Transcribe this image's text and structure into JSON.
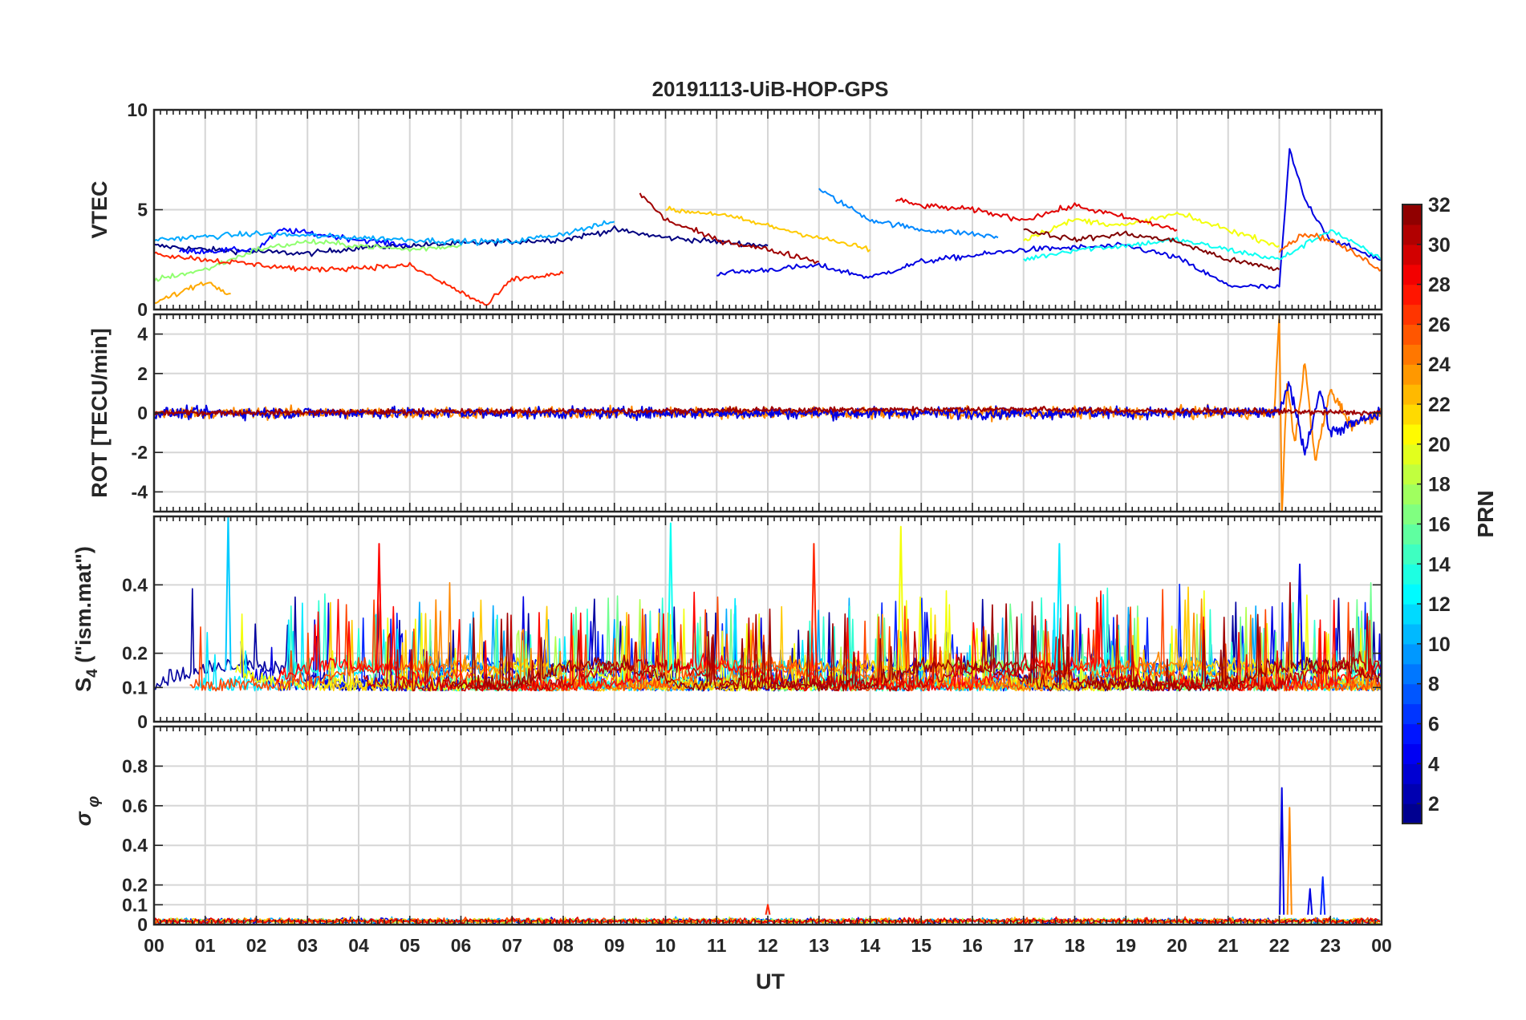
{
  "chart_data": {
    "type": "line",
    "title": "20191113-UiB-HOP-GPS",
    "xlabel": "UT",
    "x_unit": "hours",
    "xlim": [
      0,
      24
    ],
    "x_ticks": [
      0,
      1,
      2,
      3,
      4,
      5,
      6,
      7,
      8,
      9,
      10,
      11,
      12,
      13,
      14,
      15,
      16,
      17,
      18,
      19,
      20,
      21,
      22,
      23,
      24
    ],
    "x_tick_labels": [
      "00",
      "01",
      "02",
      "03",
      "04",
      "05",
      "06",
      "07",
      "08",
      "09",
      "10",
      "11",
      "12",
      "13",
      "14",
      "15",
      "16",
      "17",
      "18",
      "19",
      "20",
      "21",
      "22",
      "23",
      "00"
    ],
    "grid": true,
    "colorbar": {
      "label": "PRN",
      "range": [
        1,
        32
      ],
      "tick_values": [
        2,
        4,
        6,
        8,
        10,
        12,
        14,
        16,
        18,
        20,
        22,
        24,
        26,
        28,
        30,
        32
      ],
      "tick_labels": [
        "2",
        "4",
        "6",
        "8",
        "10",
        "12",
        "14",
        "16",
        "18",
        "20",
        "22",
        "24",
        "26",
        "28",
        "30",
        "32"
      ],
      "colormap": "jet",
      "placement": "right"
    },
    "panels": [
      {
        "id": "vtec",
        "ylabel": "VTEC",
        "ylim": [
          0,
          10
        ],
        "y_ticks": [
          0,
          5,
          10
        ],
        "y_tick_labels": [
          "0",
          "5",
          "10"
        ],
        "series": [
          {
            "prn": 1,
            "points": [
              [
                0,
                3.2
              ],
              [
                1,
                3.0
              ],
              [
                3,
                2.8
              ],
              [
                4,
                3.1
              ],
              [
                6,
                3.3
              ],
              [
                8,
                3.5
              ],
              [
                9,
                4.0
              ],
              [
                10,
                3.6
              ],
              [
                12,
                3.2
              ]
            ]
          },
          {
            "prn": 5,
            "points": [
              [
                0.5,
                2.9
              ],
              [
                2,
                3.0
              ],
              [
                2.5,
                4.0
              ],
              [
                4,
                3.5
              ],
              [
                5,
                3.2
              ]
            ]
          },
          {
            "prn": 4,
            "points": [
              [
                11,
                1.8
              ],
              [
                12,
                2.0
              ],
              [
                13,
                2.2
              ],
              [
                14,
                1.6
              ],
              [
                15,
                2.4
              ],
              [
                17,
                3.0
              ],
              [
                19,
                3.2
              ],
              [
                20,
                2.6
              ],
              [
                21,
                1.2
              ],
              [
                22,
                1.1
              ],
              [
                22.2,
                8.0
              ],
              [
                22.5,
                5.5
              ],
              [
                23,
                3.5
              ],
              [
                24,
                2.5
              ]
            ]
          },
          {
            "prn": 9,
            "points": [
              [
                13,
                6.0
              ],
              [
                14,
                4.5
              ],
              [
                15,
                4.0
              ],
              [
                16,
                3.8
              ],
              [
                16.5,
                3.6
              ]
            ]
          },
          {
            "prn": 10,
            "points": [
              [
                0,
                3.5
              ],
              [
                2,
                3.8
              ],
              [
                4,
                3.6
              ],
              [
                6,
                3.4
              ],
              [
                7,
                3.4
              ],
              [
                8,
                3.8
              ],
              [
                9,
                4.4
              ]
            ]
          },
          {
            "prn": 13,
            "points": [
              [
                17,
                2.5
              ],
              [
                18,
                3.0
              ],
              [
                19,
                3.2
              ],
              [
                20,
                3.5
              ],
              [
                21,
                3.0
              ],
              [
                22,
                2.5
              ],
              [
                23,
                4.0
              ],
              [
                24,
                2.5
              ]
            ]
          },
          {
            "prn": 17,
            "points": [
              [
                0,
                1.5
              ],
              [
                1,
                2.0
              ],
              [
                2,
                3.0
              ],
              [
                3,
                3.4
              ],
              [
                5,
                3.0
              ],
              [
                6,
                3.2
              ]
            ]
          },
          {
            "prn": 20,
            "points": [
              [
                17,
                3.5
              ],
              [
                18,
                4.5
              ],
              [
                19,
                4.2
              ],
              [
                20,
                4.8
              ],
              [
                21,
                4.0
              ],
              [
                22,
                3.2
              ]
            ]
          },
          {
            "prn": 22,
            "points": [
              [
                10,
                5.0
              ],
              [
                11,
                4.8
              ],
              [
                12,
                4.2
              ],
              [
                13,
                3.6
              ],
              [
                14,
                3.0
              ]
            ]
          },
          {
            "prn": 23,
            "points": [
              [
                0,
                0.3
              ],
              [
                1,
                1.4
              ],
              [
                1.5,
                0.8
              ]
            ]
          },
          {
            "prn": 25,
            "points": [
              [
                22,
                3.0
              ],
              [
                22.5,
                3.8
              ],
              [
                23,
                3.5
              ],
              [
                24,
                2.0
              ]
            ]
          },
          {
            "prn": 27,
            "points": [
              [
                0,
                2.8
              ],
              [
                1,
                2.5
              ],
              [
                3,
                2.0
              ],
              [
                5,
                2.2
              ],
              [
                6.5,
                0.2
              ],
              [
                7,
                1.5
              ],
              [
                8,
                1.8
              ]
            ]
          },
          {
            "prn": 29,
            "points": [
              [
                14.5,
                5.5
              ],
              [
                15,
                5.2
              ],
              [
                16,
                5.0
              ],
              [
                17,
                4.5
              ],
              [
                18,
                5.2
              ],
              [
                19,
                4.6
              ],
              [
                20,
                4.0
              ]
            ]
          },
          {
            "prn": 31,
            "points": [
              [
                9.5,
                5.8
              ],
              [
                10,
                4.5
              ],
              [
                11,
                3.5
              ],
              [
                12,
                3.0
              ],
              [
                13,
                2.4
              ]
            ]
          },
          {
            "prn": 32,
            "points": [
              [
                17,
                4.0
              ],
              [
                18,
                3.5
              ],
              [
                19,
                3.8
              ],
              [
                20,
                3.4
              ],
              [
                21,
                2.5
              ],
              [
                22,
                2.0
              ]
            ]
          }
        ]
      },
      {
        "id": "rot",
        "ylabel": "ROT [TECU/min]",
        "ylim": [
          -5,
          5
        ],
        "y_ticks": [
          -4,
          -2,
          0,
          2,
          4
        ],
        "y_tick_labels": [
          "-4",
          "-2",
          "0",
          "2",
          "4"
        ],
        "series": [
          {
            "prn": 24,
            "points": [
              [
                0,
                0
              ],
              [
                21.9,
                0
              ],
              [
                22,
                5
              ],
              [
                22.05,
                -5
              ],
              [
                22.15,
                1.5
              ],
              [
                22.3,
                -1.5
              ],
              [
                22.5,
                2.5
              ],
              [
                22.7,
                -2.5
              ],
              [
                23,
                1.2
              ],
              [
                23.4,
                -0.6
              ],
              [
                24,
                0
              ]
            ]
          },
          {
            "prn": 4,
            "points": [
              [
                0,
                0
              ],
              [
                22,
                0
              ],
              [
                22.2,
                1.5
              ],
              [
                22.5,
                -2
              ],
              [
                22.8,
                1.2
              ],
              [
                23,
                -1
              ],
              [
                24,
                0
              ]
            ]
          },
          {
            "prn": 31,
            "points": [
              [
                0,
                0
              ],
              [
                17,
                0.2
              ],
              [
                19,
                0.1
              ],
              [
                21,
                0.1
              ],
              [
                24,
                0
              ]
            ]
          }
        ]
      },
      {
        "id": "s4",
        "ylabel": "S4 (\"ism.mat\")",
        "ylabel_main": "S",
        "ylabel_sub": "4",
        "ylabel_rest": " (\"ism.mat\")",
        "ylim": [
          0,
          0.6
        ],
        "y_ticks": [
          0,
          0.1,
          0.2,
          0.4
        ],
        "y_tick_labels": [
          "0",
          "0.1",
          "0.2",
          "0.4"
        ],
        "peaks": [
          {
            "x": 1.45,
            "y": 0.6,
            "prn": 11
          },
          {
            "x": 4.4,
            "y": 0.52,
            "prn": 28
          },
          {
            "x": 10.1,
            "y": 0.58,
            "prn": 13
          },
          {
            "x": 12.9,
            "y": 0.52,
            "prn": 27
          },
          {
            "x": 14.6,
            "y": 0.57,
            "prn": 20
          },
          {
            "x": 17.7,
            "y": 0.52,
            "prn": 12
          },
          {
            "x": 22.4,
            "y": 0.46,
            "prn": 4
          }
        ]
      },
      {
        "id": "sigma_phi",
        "ylabel": "σ φ",
        "ylabel_main": "σ",
        "ylabel_sub": "φ",
        "ylim": [
          0,
          1
        ],
        "y_ticks": [
          0,
          0.1,
          0.2,
          0.4,
          0.6,
          0.8
        ],
        "y_tick_labels": [
          "0",
          "0.1",
          "0.2",
          "0.4",
          "0.6",
          "0.8"
        ],
        "peaks": [
          {
            "x": 22.05,
            "y": 0.69,
            "prn": 4
          },
          {
            "x": 22.2,
            "y": 0.59,
            "prn": 24
          },
          {
            "x": 22.6,
            "y": 0.18,
            "prn": 4
          },
          {
            "x": 22.85,
            "y": 0.24,
            "prn": 6
          },
          {
            "x": 12.0,
            "y": 0.1,
            "prn": 27
          }
        ]
      }
    ]
  }
}
